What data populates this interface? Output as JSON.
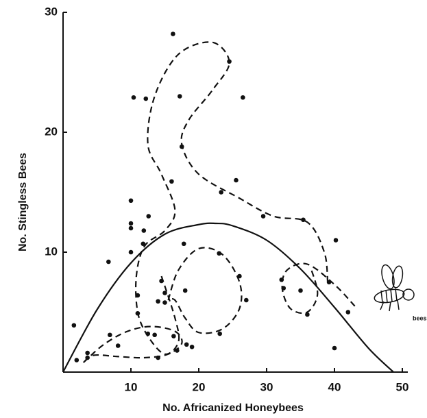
{
  "chart_data": {
    "type": "scatter",
    "x_label": "No. Africanized Honeybees",
    "y_label": "No. Stingless Bees",
    "xlim": [
      0,
      50
    ],
    "ylim": [
      0,
      30
    ],
    "xticks": [
      10,
      20,
      30,
      40,
      50
    ],
    "yticks": [
      10,
      20,
      30
    ],
    "color": "#111111",
    "annotation": "bees",
    "points": {
      "x": [
        1.6,
        2,
        3.6,
        3.6,
        6.7,
        6.9,
        8.1,
        10,
        10,
        10,
        10,
        10.4,
        11,
        11,
        11.8,
        11.9,
        12.2,
        12.5,
        12.6,
        13.5,
        14,
        14,
        14.5,
        15,
        15,
        16,
        16.2,
        16.3,
        16.8,
        17.2,
        17.5,
        17.8,
        18,
        18.2,
        19,
        23,
        23.1,
        23.3,
        24.5,
        25.5,
        26,
        26.5,
        27,
        29.5,
        32.2,
        32.5,
        35,
        35.4,
        36,
        39.2,
        40,
        40.2,
        42
      ],
      "y": [
        3.9,
        1,
        1.6,
        1.2,
        9.2,
        3.1,
        2.2,
        10,
        14.3,
        12.4,
        12,
        22.9,
        6.4,
        4.9,
        10.7,
        11.8,
        22.8,
        3.2,
        13,
        3.1,
        5.9,
        1.2,
        7.6,
        5.8,
        6.6,
        15.9,
        28.2,
        3,
        1.8,
        23,
        18.8,
        10.7,
        6.8,
        2.3,
        2.1,
        9.9,
        3.2,
        15,
        25.9,
        16,
        8,
        22.9,
        6,
        13,
        7.7,
        7,
        6.8,
        12.7,
        4.8,
        7.5,
        2,
        11,
        5
      ]
    },
    "fit_curve": {
      "x": [
        0,
        5,
        10,
        15,
        20,
        22.5,
        25,
        30,
        35,
        40,
        45,
        48.7
      ],
      "y": [
        0,
        5.2,
        9.1,
        11.5,
        12.3,
        12.4,
        12.2,
        11,
        8.6,
        5.4,
        2,
        0
      ]
    },
    "loops": [
      {
        "x": [
          39,
          38.5,
          36,
          31,
          26,
          20,
          17.5,
          18.5,
          22,
          24.5,
          22,
          17,
          13.5,
          12.5,
          14.5,
          16.5,
          15,
          12,
          10.8,
          11,
          12.5,
          15,
          17,
          16.5,
          14.5
        ],
        "y": [
          7.5,
          10,
          12.5,
          13,
          14.5,
          16.5,
          19,
          21,
          23.5,
          25.8,
          27.5,
          26.5,
          23,
          19,
          16.5,
          13.5,
          11.8,
          10.5,
          8,
          5,
          3,
          1.5,
          2.5,
          4.5,
          8
        ]
      },
      {
        "x": [
          15.5,
          17,
          20,
          23.5,
          26,
          26,
          23.5,
          20,
          18,
          16.5,
          15.5
        ],
        "y": [
          6,
          8.5,
          10.3,
          9.8,
          7.5,
          5.3,
          3.6,
          3.3,
          4.5,
          6,
          6
        ]
      },
      {
        "x": [
          43,
          40,
          36,
          33,
          32.3,
          33.5,
          36,
          37.5,
          36.5
        ],
        "y": [
          5.5,
          7.3,
          9,
          8.5,
          7,
          5.3,
          5,
          6.5,
          8.7
        ]
      },
      {
        "x": [
          3,
          6,
          9.5,
          13,
          16.5,
          17.5,
          15.5,
          12,
          8,
          4.5,
          3
        ],
        "y": [
          0.8,
          2.3,
          3.4,
          3.8,
          3.4,
          2.4,
          1.5,
          1.2,
          1.3,
          1.4,
          0.8
        ]
      }
    ]
  }
}
